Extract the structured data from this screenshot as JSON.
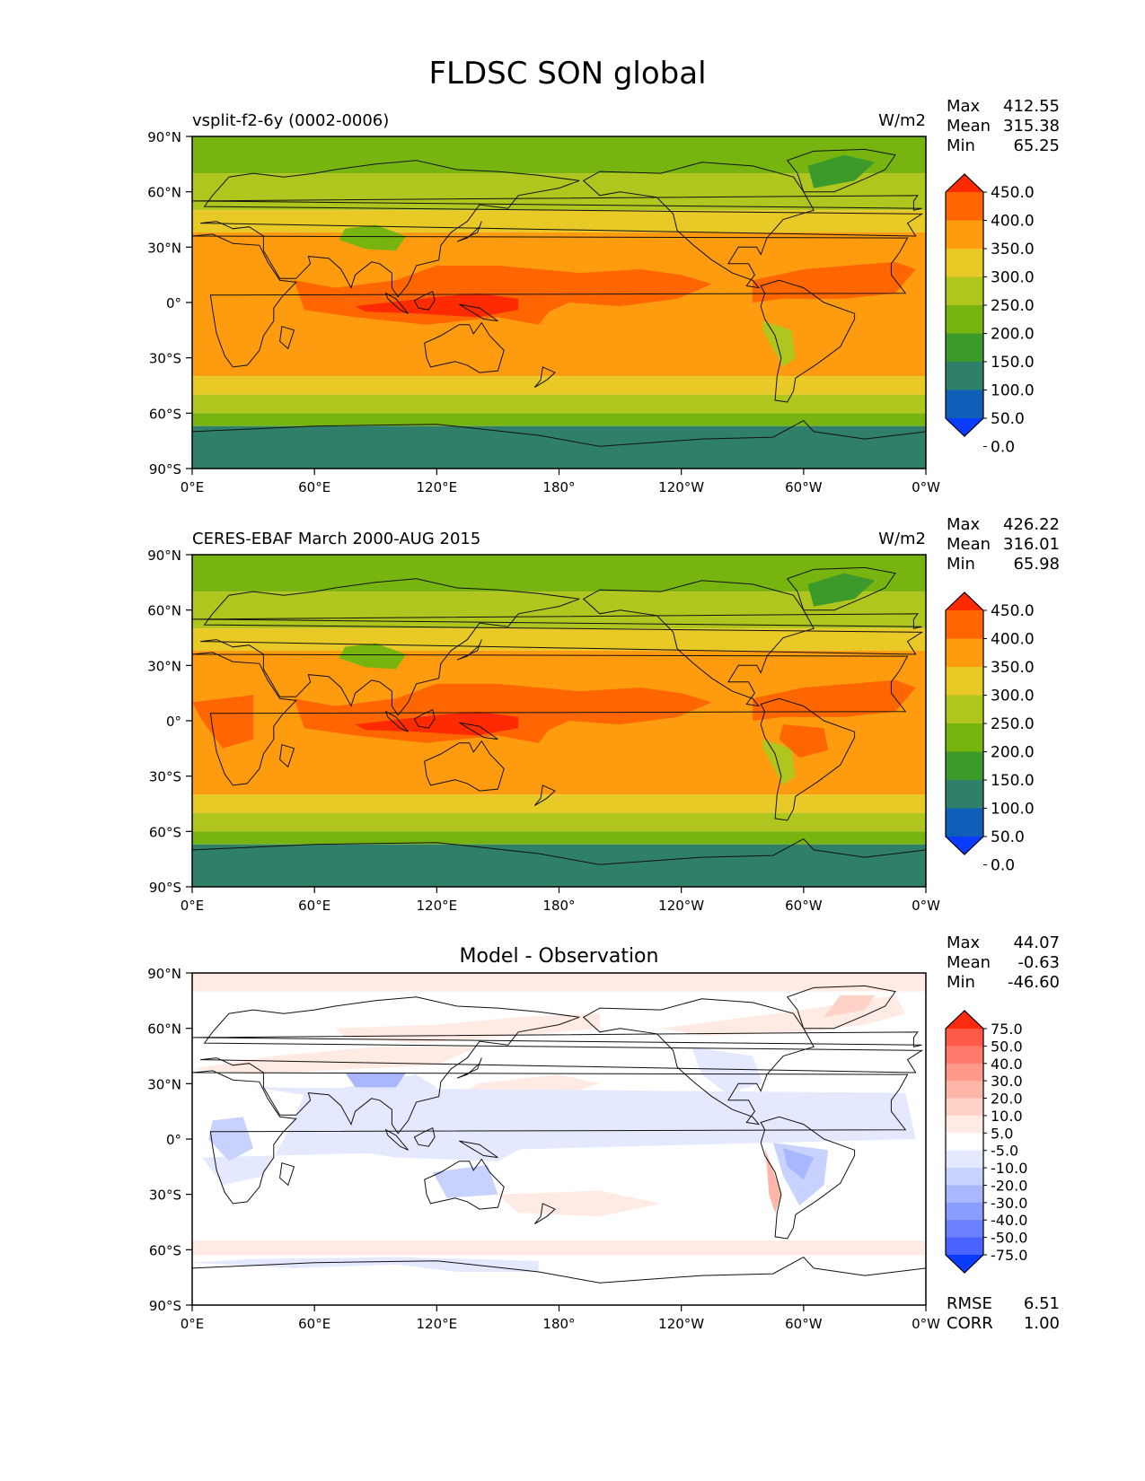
{
  "title": "FLDSC SON global",
  "xticks": [
    "0°E",
    "60°E",
    "120°E",
    "180°",
    "120°W",
    "60°W",
    "0°W"
  ],
  "yticks": [
    "90°N",
    "60°N",
    "30°N",
    "0°",
    "30°S",
    "60°S",
    "90°S"
  ],
  "panels": [
    {
      "id": "model",
      "left_title": "vsplit-f2-6y (0002-0006)",
      "center_title": "",
      "units": "W/m2",
      "stats": [
        [
          "Max",
          "412.55"
        ],
        [
          "Mean",
          "315.38"
        ],
        [
          "Min",
          "65.25"
        ]
      ],
      "extra_stats": [],
      "levels": [
        "450.0",
        "400.0",
        "350.0",
        "300.0",
        "250.0",
        "200.0",
        "150.0",
        "100.0",
        "50.0",
        "0.0"
      ],
      "colors": [
        "#ff2a00",
        "#ff6600",
        "#ff9b0f",
        "#e8c926",
        "#b0c51e",
        "#78b410",
        "#3c9a2a",
        "#2f7f6b",
        "#0f5fb8",
        "#0a3cff"
      ]
    },
    {
      "id": "obs",
      "left_title": "CERES-EBAF March 2000-AUG 2015",
      "center_title": "",
      "units": "W/m2",
      "stats": [
        [
          "Max",
          "426.22"
        ],
        [
          "Mean",
          "316.01"
        ],
        [
          "Min",
          "65.98"
        ]
      ],
      "extra_stats": [],
      "levels": [
        "450.0",
        "400.0",
        "350.0",
        "300.0",
        "250.0",
        "200.0",
        "150.0",
        "100.0",
        "50.0",
        "0.0"
      ],
      "colors": [
        "#ff2a00",
        "#ff6600",
        "#ff9b0f",
        "#e8c926",
        "#b0c51e",
        "#78b410",
        "#3c9a2a",
        "#2f7f6b",
        "#0f5fb8",
        "#0a3cff"
      ]
    },
    {
      "id": "diff",
      "left_title": "",
      "center_title": "Model - Observation",
      "units": "",
      "stats": [
        [
          "Max",
          "44.07"
        ],
        [
          "Mean",
          "-0.63"
        ],
        [
          "Min",
          "-46.60"
        ]
      ],
      "extra_stats": [
        [
          "RMSE",
          "6.51"
        ],
        [
          "CORR",
          "1.00"
        ]
      ],
      "levels": [
        "75.0",
        "50.0",
        "40.0",
        "30.0",
        "20.0",
        "10.0",
        "5.0",
        "-5.0",
        "-10.0",
        "-20.0",
        "-30.0",
        "-40.0",
        "-50.0",
        "-75.0"
      ],
      "colors": [
        "#ff2a10",
        "#ff5a48",
        "#ff7a6a",
        "#ff998a",
        "#ffb5a8",
        "#ffd2c8",
        "#ffeae4",
        "#ffffff",
        "#e4e9ff",
        "#c8d2ff",
        "#a9b7ff",
        "#8a9cff",
        "#6a80ff",
        "#4a62ff",
        "#0a3cff"
      ]
    }
  ]
}
